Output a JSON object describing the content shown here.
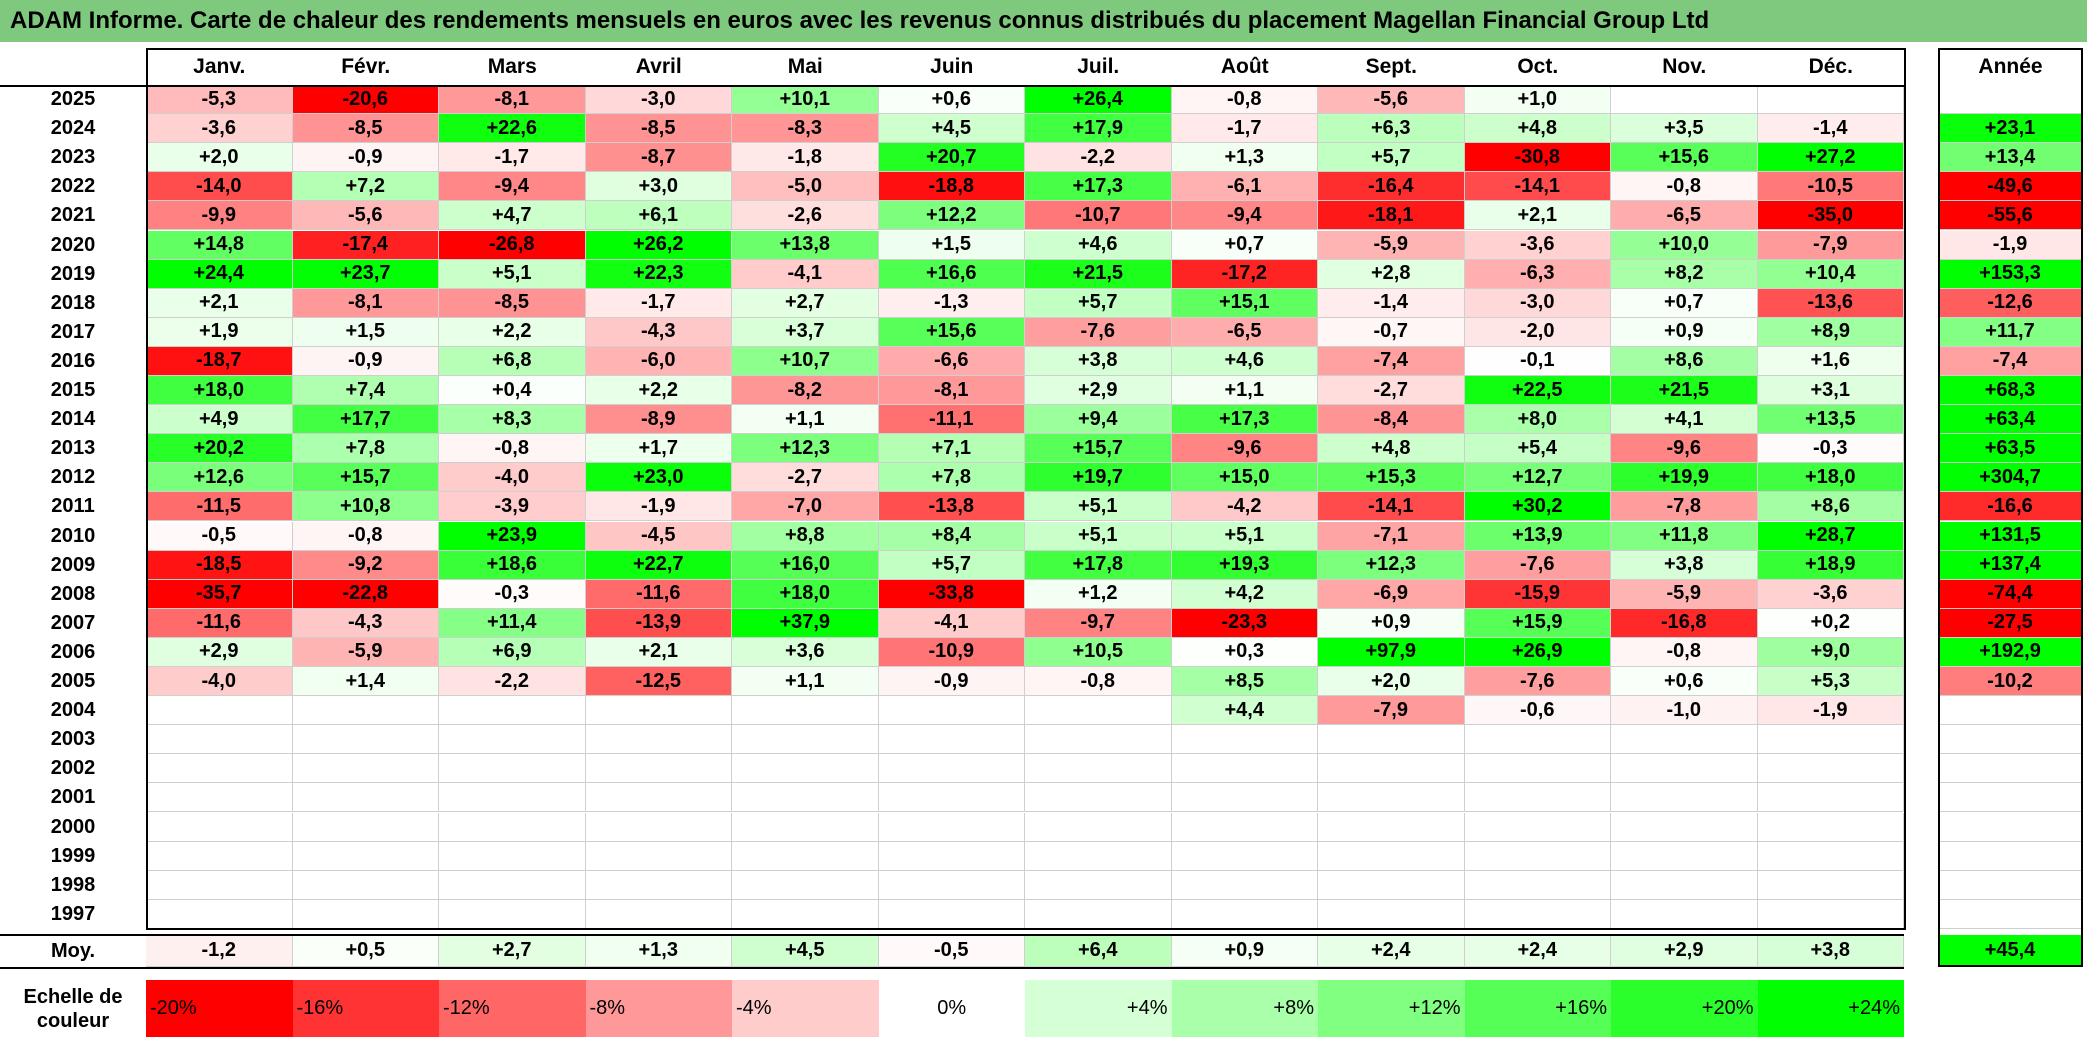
{
  "title": "ADAM Informe. Carte de chaleur des rendements mensuels en euros avec les revenus connus distribués du placement Magellan Financial Group Ltd",
  "chart_data": {
    "type": "heatmap",
    "title": "ADAM Informe. Carte de chaleur des rendements mensuels en euros avec les revenus connus distribués du placement Magellan Financial Group Ltd",
    "columns": [
      "Janv.",
      "Févr.",
      "Mars",
      "Avril",
      "Mai",
      "Juin",
      "Juil.",
      "Août",
      "Sept.",
      "Oct.",
      "Nov.",
      "Déc."
    ],
    "year_column_label": "Année",
    "rows": [
      {
        "year": "2025",
        "values": [
          "-5,3",
          "-20,6",
          "-8,1",
          "-3,0",
          "+10,1",
          "+0,6",
          "+26,4",
          "-0,8",
          "-5,6",
          "+1,0",
          "",
          ""
        ],
        "annual": ""
      },
      {
        "year": "2024",
        "values": [
          "-3,6",
          "-8,5",
          "+22,6",
          "-8,5",
          "-8,3",
          "+4,5",
          "+17,9",
          "-1,7",
          "+6,3",
          "+4,8",
          "+3,5",
          "-1,4"
        ],
        "annual": "+23,1"
      },
      {
        "year": "2023",
        "values": [
          "+2,0",
          "-0,9",
          "-1,7",
          "-8,7",
          "-1,8",
          "+20,7",
          "-2,2",
          "+1,3",
          "+5,7",
          "-30,8",
          "+15,6",
          "+27,2"
        ],
        "annual": "+13,4"
      },
      {
        "year": "2022",
        "values": [
          "-14,0",
          "+7,2",
          "-9,4",
          "+3,0",
          "-5,0",
          "-18,8",
          "+17,3",
          "-6,1",
          "-16,4",
          "-14,1",
          "-0,8",
          "-10,5"
        ],
        "annual": "-49,6"
      },
      {
        "year": "2021",
        "values": [
          "-9,9",
          "-5,6",
          "+4,7",
          "+6,1",
          "-2,6",
          "+12,2",
          "-10,7",
          "-9,4",
          "-18,1",
          "+2,1",
          "-6,5",
          "-35,0"
        ],
        "annual": "-55,6"
      },
      {
        "year": "2020",
        "values": [
          "+14,8",
          "-17,4",
          "-26,8",
          "+26,2",
          "+13,8",
          "+1,5",
          "+4,6",
          "+0,7",
          "-5,9",
          "-3,6",
          "+10,0",
          "-7,9"
        ],
        "annual": "-1,9"
      },
      {
        "year": "2019",
        "values": [
          "+24,4",
          "+23,7",
          "+5,1",
          "+22,3",
          "-4,1",
          "+16,6",
          "+21,5",
          "-17,2",
          "+2,8",
          "-6,3",
          "+8,2",
          "+10,4"
        ],
        "annual": "+153,3"
      },
      {
        "year": "2018",
        "values": [
          "+2,1",
          "-8,1",
          "-8,5",
          "-1,7",
          "+2,7",
          "-1,3",
          "+5,7",
          "+15,1",
          "-1,4",
          "-3,0",
          "+0,7",
          "-13,6"
        ],
        "annual": "-12,6"
      },
      {
        "year": "2017",
        "values": [
          "+1,9",
          "+1,5",
          "+2,2",
          "-4,3",
          "+3,7",
          "+15,6",
          "-7,6",
          "-6,5",
          "-0,7",
          "-2,0",
          "+0,9",
          "+8,9"
        ],
        "annual": "+11,7"
      },
      {
        "year": "2016",
        "values": [
          "-18,7",
          "-0,9",
          "+6,8",
          "-6,0",
          "+10,7",
          "-6,6",
          "+3,8",
          "+4,6",
          "-7,4",
          "-0,1",
          "+8,6",
          "+1,6"
        ],
        "annual": "-7,4"
      },
      {
        "year": "2015",
        "values": [
          "+18,0",
          "+7,4",
          "+0,4",
          "+2,2",
          "-8,2",
          "-8,1",
          "+2,9",
          "+1,1",
          "-2,7",
          "+22,5",
          "+21,5",
          "+3,1"
        ],
        "annual": "+68,3"
      },
      {
        "year": "2014",
        "values": [
          "+4,9",
          "+17,7",
          "+8,3",
          "-8,9",
          "+1,1",
          "-11,1",
          "+9,4",
          "+17,3",
          "-8,4",
          "+8,0",
          "+4,1",
          "+13,5"
        ],
        "annual": "+63,4"
      },
      {
        "year": "2013",
        "values": [
          "+20,2",
          "+7,8",
          "-0,8",
          "+1,7",
          "+12,3",
          "+7,1",
          "+15,7",
          "-9,6",
          "+4,8",
          "+5,4",
          "-9,6",
          "-0,3"
        ],
        "annual": "+63,5"
      },
      {
        "year": "2012",
        "values": [
          "+12,6",
          "+15,7",
          "-4,0",
          "+23,0",
          "-2,7",
          "+7,8",
          "+19,7",
          "+15,0",
          "+15,3",
          "+12,7",
          "+19,9",
          "+18,0"
        ],
        "annual": "+304,7"
      },
      {
        "year": "2011",
        "values": [
          "-11,5",
          "+10,8",
          "-3,9",
          "-1,9",
          "-7,0",
          "-13,8",
          "+5,1",
          "-4,2",
          "-14,1",
          "+30,2",
          "-7,8",
          "+8,6"
        ],
        "annual": "-16,6"
      },
      {
        "year": "2010",
        "values": [
          "-0,5",
          "-0,8",
          "+23,9",
          "-4,5",
          "+8,8",
          "+8,4",
          "+5,1",
          "+5,1",
          "-7,1",
          "+13,9",
          "+11,8",
          "+28,7"
        ],
        "annual": "+131,5"
      },
      {
        "year": "2009",
        "values": [
          "-18,5",
          "-9,2",
          "+18,6",
          "+22,7",
          "+16,0",
          "+5,7",
          "+17,8",
          "+19,3",
          "+12,3",
          "-7,6",
          "+3,8",
          "+18,9"
        ],
        "annual": "+137,4"
      },
      {
        "year": "2008",
        "values": [
          "-35,7",
          "-22,8",
          "-0,3",
          "-11,6",
          "+18,0",
          "-33,8",
          "+1,2",
          "+4,2",
          "-6,9",
          "-15,9",
          "-5,9",
          "-3,6"
        ],
        "annual": "-74,4"
      },
      {
        "year": "2007",
        "values": [
          "-11,6",
          "-4,3",
          "+11,4",
          "-13,9",
          "+37,9",
          "-4,1",
          "-9,7",
          "-23,3",
          "+0,9",
          "+15,9",
          "-16,8",
          "+0,2"
        ],
        "annual": "-27,5"
      },
      {
        "year": "2006",
        "values": [
          "+2,9",
          "-5,9",
          "+6,9",
          "+2,1",
          "+3,6",
          "-10,9",
          "+10,5",
          "+0,3",
          "+97,9",
          "+26,9",
          "-0,8",
          "+9,0"
        ],
        "annual": "+192,9"
      },
      {
        "year": "2005",
        "values": [
          "-4,0",
          "+1,4",
          "-2,2",
          "-12,5",
          "+1,1",
          "-0,9",
          "-0,8",
          "+8,5",
          "+2,0",
          "-7,6",
          "+0,6",
          "+5,3"
        ],
        "annual": "-10,2"
      },
      {
        "year": "2004",
        "values": [
          "",
          "",
          "",
          "",
          "",
          "",
          "",
          "+4,4",
          "-7,9",
          "-0,6",
          "-1,0",
          "-1,9"
        ],
        "annual": ""
      },
      {
        "year": "2003",
        "values": [
          "",
          "",
          "",
          "",
          "",
          "",
          "",
          "",
          "",
          "",
          "",
          ""
        ],
        "annual": ""
      },
      {
        "year": "2002",
        "values": [
          "",
          "",
          "",
          "",
          "",
          "",
          "",
          "",
          "",
          "",
          "",
          ""
        ],
        "annual": ""
      },
      {
        "year": "2001",
        "values": [
          "",
          "",
          "",
          "",
          "",
          "",
          "",
          "",
          "",
          "",
          "",
          ""
        ],
        "annual": ""
      },
      {
        "year": "2000",
        "values": [
          "",
          "",
          "",
          "",
          "",
          "",
          "",
          "",
          "",
          "",
          "",
          ""
        ],
        "annual": ""
      },
      {
        "year": "1999",
        "values": [
          "",
          "",
          "",
          "",
          "",
          "",
          "",
          "",
          "",
          "",
          "",
          ""
        ],
        "annual": ""
      },
      {
        "year": "1998",
        "values": [
          "",
          "",
          "",
          "",
          "",
          "",
          "",
          "",
          "",
          "",
          "",
          ""
        ],
        "annual": ""
      },
      {
        "year": "1997",
        "values": [
          "",
          "",
          "",
          "",
          "",
          "",
          "",
          "",
          "",
          "",
          "",
          ""
        ],
        "annual": ""
      }
    ],
    "average": {
      "label": "Moy.",
      "values": [
        "-1,2",
        "+0,5",
        "+2,7",
        "+1,3",
        "+4,5",
        "-0,5",
        "+6,4",
        "+0,9",
        "+2,4",
        "+2,4",
        "+2,9",
        "+3,8"
      ],
      "annual": "+45,4"
    },
    "color_scale": {
      "label": "Echelle de couleur",
      "stops": [
        "-20%",
        "-16%",
        "-12%",
        "-8%",
        "-4%",
        "0%",
        "+4%",
        "+8%",
        "+12%",
        "+16%",
        "+20%",
        "+24%"
      ],
      "stop_values": [
        -20,
        -16,
        -12,
        -8,
        -4,
        0,
        4,
        8,
        12,
        16,
        20,
        24
      ],
      "negative_color": "#ff0000",
      "neutral_color": "#ffffff",
      "positive_color": "#00ff00"
    }
  }
}
